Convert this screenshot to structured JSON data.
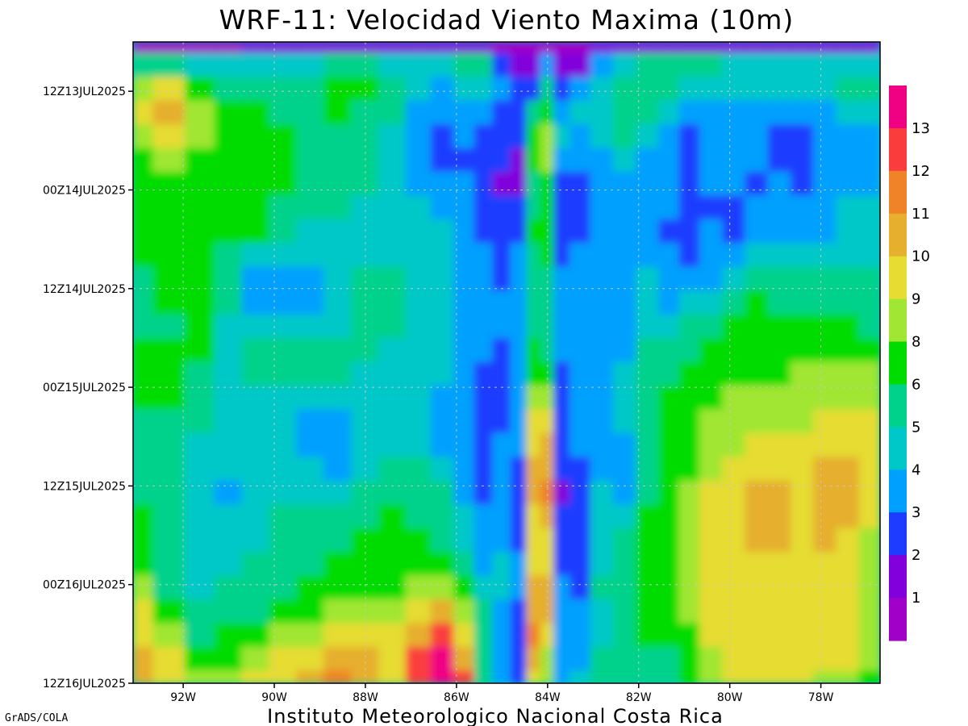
{
  "chart_data": {
    "type": "heatmap",
    "title": "WRF-11: Velocidad  Viento Maxima (10m)",
    "footer": "Instituto Meteorologico Nacional Costa Rica",
    "credit": "GrADS/COLA",
    "x_ticks": [
      {
        "value": -92,
        "label": "92W"
      },
      {
        "value": -90,
        "label": "90W"
      },
      {
        "value": -88,
        "label": "88W"
      },
      {
        "value": -86,
        "label": "86W"
      },
      {
        "value": -84,
        "label": "84W"
      },
      {
        "value": -82,
        "label": "82W"
      },
      {
        "value": -80,
        "label": "80W"
      },
      {
        "value": -78,
        "label": "78W"
      }
    ],
    "xlim": [
      -93.1,
      -76.7
    ],
    "y_ticks": [
      {
        "value": 0,
        "label": "12Z13JUL2025"
      },
      {
        "value": 12,
        "label": "00Z14JUL2025"
      },
      {
        "value": 24,
        "label": "12Z14JUL2025"
      },
      {
        "value": 36,
        "label": "00Z15JUL2025"
      },
      {
        "value": 48,
        "label": "12Z15JUL2025"
      },
      {
        "value": 60,
        "label": "00Z16JUL2025"
      },
      {
        "value": 72,
        "label": "12Z16JUL2025"
      }
    ],
    "ylim": [
      -6,
      72
    ],
    "grid": true,
    "colorbar": {
      "labels": [
        "1",
        "2",
        "3",
        "4",
        "5",
        "6",
        "8",
        "9",
        "10",
        "11",
        "12",
        "13"
      ],
      "colors": [
        "#a000c8",
        "#8200dc",
        "#1e3cff",
        "#00a0ff",
        "#00c8c8",
        "#00d28c",
        "#00dc00",
        "#a0e632",
        "#e6dc32",
        "#e6af2d",
        "#f08228",
        "#fa3c3c",
        "#f00082"
      ]
    },
    "columns": [
      {
        "x": -93.0,
        "v": [
          0.5,
          5,
          8,
          9,
          8,
          7,
          6,
          6,
          6,
          6,
          5,
          5,
          5,
          6,
          6,
          6,
          5,
          5,
          5,
          5,
          6,
          6,
          6,
          8,
          9,
          9,
          10,
          10
        ]
      },
      {
        "x": -92.3,
        "v": [
          0.5,
          5,
          9,
          10,
          9,
          8,
          6,
          6,
          6,
          6,
          6,
          6,
          5,
          6,
          6,
          6,
          5,
          5,
          5,
          5,
          5,
          5,
          5,
          5,
          6,
          8,
          9,
          9
        ]
      },
      {
        "x": -91.6,
        "v": [
          0.5,
          4,
          6,
          8,
          8,
          6,
          6,
          6,
          6,
          6,
          6,
          6,
          6,
          6,
          5,
          5,
          5,
          4,
          4,
          4,
          4,
          4,
          4,
          4,
          5,
          5,
          6,
          8
        ]
      },
      {
        "x": -91.0,
        "v": [
          0.5,
          4,
          5,
          6,
          6,
          6,
          6,
          6,
          6,
          5,
          5,
          5,
          4,
          4,
          4,
          4,
          4,
          4,
          4,
          3,
          4,
          4,
          4,
          5,
          5,
          6,
          6,
          8
        ]
      },
      {
        "x": -90.4,
        "v": [
          1,
          4,
          5,
          6,
          6,
          6,
          6,
          6,
          6,
          4,
          3,
          3,
          4,
          5,
          5,
          4,
          4,
          4,
          4,
          4,
          4,
          4,
          5,
          5,
          5,
          6,
          8,
          9
        ]
      },
      {
        "x": -89.8,
        "v": [
          1,
          4,
          5,
          5,
          6,
          6,
          6,
          5,
          5,
          4,
          3,
          3,
          4,
          5,
          5,
          4,
          4,
          4,
          4,
          4,
          5,
          5,
          5,
          5,
          6,
          8,
          9,
          9
        ]
      },
      {
        "x": -89.2,
        "v": [
          1,
          4,
          5,
          5,
          5,
          5,
          5,
          5,
          4,
          4,
          3,
          3,
          4,
          5,
          5,
          4,
          3,
          3,
          4,
          4,
          5,
          5,
          5,
          6,
          6,
          8,
          9,
          10
        ]
      },
      {
        "x": -88.6,
        "v": [
          1,
          5,
          6,
          6,
          5,
          5,
          5,
          5,
          4,
          4,
          4,
          4,
          4,
          5,
          5,
          4,
          3,
          3,
          3,
          4,
          5,
          5,
          6,
          6,
          8,
          9,
          10,
          11
        ]
      },
      {
        "x": -88.0,
        "v": [
          1,
          5,
          6,
          5,
          5,
          5,
          5,
          4,
          4,
          4,
          5,
          5,
          5,
          5,
          4,
          4,
          4,
          4,
          4,
          5,
          5,
          6,
          6,
          6,
          8,
          9,
          10,
          10
        ]
      },
      {
        "x": -87.4,
        "v": [
          1,
          4,
          5,
          5,
          4,
          4,
          4,
          4,
          4,
          4,
          5,
          5,
          5,
          4,
          4,
          4,
          4,
          4,
          5,
          5,
          6,
          6,
          6,
          6,
          8,
          9,
          9,
          9
        ]
      },
      {
        "x": -86.8,
        "v": [
          1,
          4,
          4,
          3,
          3,
          3,
          3,
          4,
          4,
          4,
          4,
          4,
          4,
          4,
          4,
          4,
          4,
          4,
          5,
          5,
          5,
          6,
          6,
          8,
          9,
          10,
          12,
          12
        ]
      },
      {
        "x": -86.3,
        "v": [
          1,
          4,
          3,
          3,
          2,
          2,
          3,
          3,
          4,
          4,
          4,
          4,
          4,
          4,
          4,
          3,
          3,
          3,
          4,
          5,
          5,
          5,
          6,
          8,
          10,
          12,
          13,
          13
        ]
      },
      {
        "x": -85.8,
        "v": [
          1,
          5,
          4,
          3,
          3,
          2,
          3,
          3,
          3,
          3,
          3,
          3,
          3,
          3,
          3,
          3,
          3,
          3,
          3,
          3,
          4,
          4,
          5,
          6,
          8,
          9,
          10,
          12
        ]
      },
      {
        "x": -85.4,
        "v": [
          1,
          5,
          4,
          3,
          2,
          2,
          2,
          2,
          2,
          3,
          3,
          3,
          3,
          3,
          2,
          2,
          2,
          2,
          2,
          2,
          3,
          3,
          3,
          4,
          5,
          5,
          5,
          5
        ]
      },
      {
        "x": -85.0,
        "v": [
          0.5,
          2,
          3,
          2,
          2,
          2,
          1,
          2,
          2,
          2,
          2,
          3,
          3,
          2,
          2,
          2,
          2,
          3,
          3,
          3,
          3,
          3,
          4,
          4,
          3,
          3,
          3,
          3
        ]
      },
      {
        "x": -84.6,
        "v": [
          0.5,
          1,
          2,
          2,
          2,
          1,
          1,
          2,
          2,
          3,
          3,
          3,
          3,
          3,
          3,
          3,
          3,
          3,
          2,
          2,
          2,
          2,
          3,
          3,
          2,
          2,
          2,
          2
        ]
      },
      {
        "x": -84.3,
        "v": [
          0.5,
          1,
          2,
          5,
          6,
          6,
          5,
          5,
          6,
          5,
          5,
          5,
          5,
          6,
          6,
          8,
          9,
          9,
          10,
          10,
          9,
          9,
          9,
          10,
          10,
          11,
          10,
          9
        ]
      },
      {
        "x": -84.0,
        "v": [
          0.5,
          3,
          5,
          6,
          8,
          8,
          6,
          6,
          6,
          6,
          5,
          5,
          5,
          5,
          6,
          8,
          9,
          10,
          10,
          11,
          10,
          9,
          9,
          10,
          10,
          9,
          8,
          8
        ]
      },
      {
        "x": -83.7,
        "v": [
          0.5,
          1,
          2,
          3,
          4,
          3,
          2,
          2,
          2,
          2,
          3,
          3,
          3,
          3,
          2,
          2,
          2,
          2,
          2,
          1,
          2,
          2,
          2,
          3,
          3,
          3,
          3,
          3
        ]
      },
      {
        "x": -83.3,
        "v": [
          0.5,
          1,
          3,
          4,
          3,
          3,
          2,
          2,
          2,
          3,
          3,
          3,
          3,
          3,
          3,
          3,
          3,
          3,
          2,
          2,
          2,
          2,
          2,
          2,
          3,
          3,
          3,
          4
        ]
      },
      {
        "x": -82.8,
        "v": [
          1,
          3,
          4,
          4,
          4,
          3,
          3,
          3,
          3,
          3,
          3,
          3,
          3,
          3,
          3,
          3,
          3,
          3,
          3,
          4,
          4,
          4,
          4,
          5,
          4,
          4,
          5,
          5
        ]
      },
      {
        "x": -82.3,
        "v": [
          1,
          4,
          5,
          5,
          5,
          4,
          3,
          3,
          3,
          3,
          3,
          3,
          3,
          3,
          4,
          4,
          4,
          3,
          3,
          3,
          4,
          5,
          5,
          5,
          5,
          5,
          5,
          5
        ]
      },
      {
        "x": -81.8,
        "v": [
          1,
          5,
          5,
          5,
          4,
          3,
          3,
          3,
          3,
          3,
          4,
          4,
          4,
          5,
          5,
          5,
          5,
          5,
          5,
          5,
          6,
          6,
          6,
          6,
          6,
          6,
          5,
          5
        ]
      },
      {
        "x": -81.3,
        "v": [
          1,
          5,
          5,
          4,
          3,
          3,
          3,
          3,
          2,
          3,
          3,
          3,
          4,
          5,
          5,
          6,
          6,
          6,
          6,
          6,
          6,
          6,
          6,
          6,
          6,
          6,
          5,
          5
        ]
      },
      {
        "x": -80.9,
        "v": [
          1,
          5,
          4,
          3,
          2,
          2,
          2,
          2,
          2,
          2,
          3,
          4,
          5,
          5,
          6,
          6,
          6,
          6,
          6,
          8,
          8,
          8,
          8,
          8,
          8,
          6,
          6,
          6
        ]
      },
      {
        "x": -80.4,
        "v": [
          1,
          5,
          4,
          3,
          3,
          3,
          3,
          2,
          3,
          3,
          3,
          4,
          5,
          6,
          6,
          6,
          8,
          8,
          8,
          9,
          9,
          9,
          9,
          9,
          9,
          9,
          8,
          8
        ]
      },
      {
        "x": -79.9,
        "v": [
          1,
          4,
          4,
          3,
          3,
          3,
          3,
          2,
          2,
          3,
          4,
          5,
          6,
          6,
          6,
          8,
          8,
          8,
          9,
          9,
          9,
          9,
          9,
          9,
          9,
          9,
          9,
          9
        ]
      },
      {
        "x": -79.4,
        "v": [
          1,
          4,
          4,
          3,
          3,
          3,
          2,
          3,
          3,
          4,
          5,
          6,
          6,
          6,
          6,
          8,
          8,
          9,
          9,
          10,
          10,
          10,
          9,
          9,
          9,
          9,
          9,
          9
        ]
      },
      {
        "x": -78.9,
        "v": [
          1,
          4,
          4,
          3,
          2,
          2,
          3,
          3,
          3,
          4,
          5,
          5,
          6,
          6,
          6,
          8,
          8,
          9,
          9,
          10,
          10,
          10,
          9,
          9,
          9,
          9,
          9,
          9
        ]
      },
      {
        "x": -78.4,
        "v": [
          1,
          4,
          4,
          3,
          2,
          2,
          2,
          3,
          3,
          4,
          5,
          5,
          6,
          6,
          8,
          8,
          8,
          9,
          9,
          9,
          9,
          9,
          9,
          9,
          9,
          9,
          9,
          9
        ]
      },
      {
        "x": -77.9,
        "v": [
          1,
          4,
          4,
          3,
          3,
          3,
          3,
          3,
          3,
          4,
          5,
          5,
          6,
          6,
          8,
          8,
          9,
          9,
          10,
          10,
          10,
          10,
          9,
          9,
          9,
          9,
          9,
          8
        ]
      },
      {
        "x": -77.4,
        "v": [
          1,
          4,
          5,
          4,
          3,
          3,
          3,
          4,
          4,
          4,
          5,
          5,
          6,
          6,
          8,
          8,
          9,
          9,
          10,
          10,
          10,
          9,
          9,
          9,
          9,
          9,
          9,
          8
        ]
      },
      {
        "x": -76.9,
        "v": [
          1,
          4,
          5,
          4,
          3,
          3,
          3,
          4,
          4,
          4,
          5,
          5,
          5,
          6,
          8,
          8,
          9,
          9,
          9,
          9,
          9,
          8,
          8,
          8,
          8,
          8,
          8,
          6
        ]
      }
    ]
  }
}
